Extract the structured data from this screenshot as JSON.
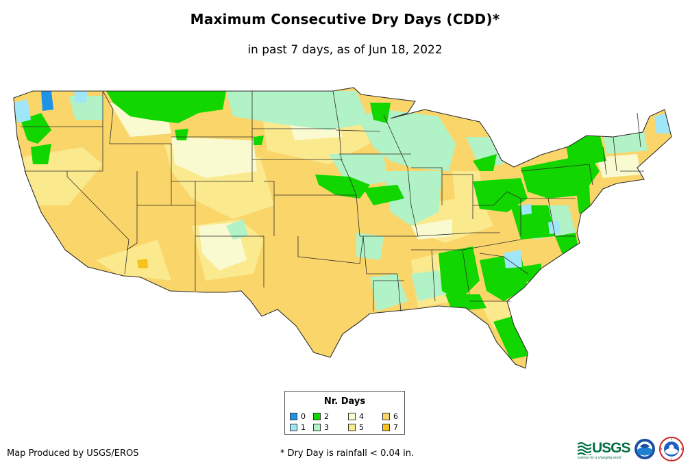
{
  "header": {
    "title": "Maximum Consecutive Dry Days (CDD)*",
    "subtitle": "in past 7 days, as of Jun 18, 2022"
  },
  "legend": {
    "title": "Nr. Days",
    "items": [
      {
        "label": "0",
        "color": "#1f93e6"
      },
      {
        "label": "1",
        "color": "#9ee6f8"
      },
      {
        "label": "2",
        "color": "#11d600"
      },
      {
        "label": "3",
        "color": "#b2f2c7"
      },
      {
        "label": "4",
        "color": "#fafad0"
      },
      {
        "label": "5",
        "color": "#fbe98e"
      },
      {
        "label": "6",
        "color": "#f9d56a"
      },
      {
        "label": "7",
        "color": "#f6c21b"
      }
    ]
  },
  "footer": {
    "credit": "Map Produced by USGS/EROS",
    "footnote": "* Dry Day is rainfall < 0.04 in."
  },
  "logos": {
    "usgs_wordmark": "USGS",
    "usgs_tagline": "science for a changing world"
  },
  "map_colors": {
    "state_border": "#2b2b2b",
    "base": "#f9d56a"
  }
}
